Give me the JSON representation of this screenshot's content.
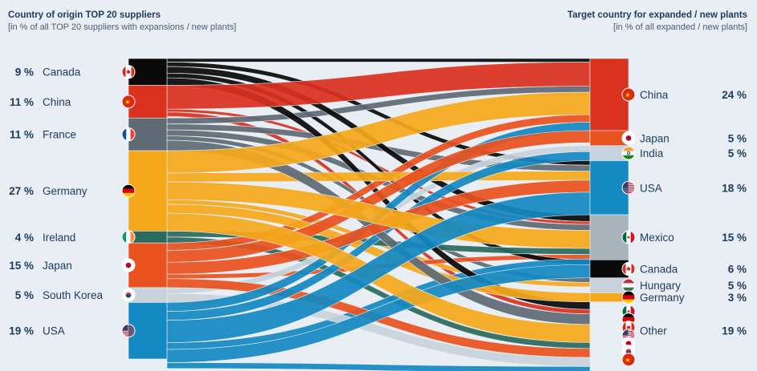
{
  "header_left": {
    "title": "Country of origin TOP 20 suppliers",
    "subtitle": "[in % of all TOP 20 suppliers with expansions / new plants]"
  },
  "header_right": {
    "title": "Target country for expanded / new plants",
    "subtitle": "[in % of all expanded / new plants]"
  },
  "sources": [
    {
      "name": "Canada",
      "pct": "9 %",
      "value": 9,
      "color": "#0a0a0a",
      "flag": "canada-flag-icon"
    },
    {
      "name": "China",
      "pct": "11 %",
      "value": 11,
      "color": "#d9321f",
      "flag": "china-flag-icon"
    },
    {
      "name": "France",
      "pct": "11 %",
      "value": 11,
      "color": "#5f6a75",
      "flag": "france-flag-icon"
    },
    {
      "name": "Germany",
      "pct": "27 %",
      "value": 27,
      "color": "#f5a81c",
      "flag": "germany-flag-icon"
    },
    {
      "name": "Ireland",
      "pct": "4 %",
      "value": 4,
      "color": "#2b6b5e",
      "flag": "ireland-flag-icon"
    },
    {
      "name": "Japan",
      "pct": "15 %",
      "value": 15,
      "color": "#e8521f",
      "flag": "japan-flag-icon"
    },
    {
      "name": "South Korea",
      "pct": "5 %",
      "value": 5,
      "color": "#c7d3dc",
      "flag": "south-korea-flag-icon"
    },
    {
      "name": "USA",
      "pct": "19 %",
      "value": 19,
      "color": "#1489c2",
      "flag": "usa-flag-icon"
    }
  ],
  "targets": [
    {
      "name": "China",
      "pct": "24 %",
      "value": 24,
      "color": "#d9321f",
      "flag": "china-flag-icon"
    },
    {
      "name": "Japan",
      "pct": "5 %",
      "value": 5,
      "color": "#e8521f",
      "flag": "japan-flag-icon"
    },
    {
      "name": "India",
      "pct": "5 %",
      "value": 5,
      "color": "#c7d3dc",
      "flag": "india-flag-icon"
    },
    {
      "name": "USA",
      "pct": "18 %",
      "value": 18,
      "color": "#1489c2",
      "flag": "usa-flag-icon"
    },
    {
      "name": "Mexico",
      "pct": "15 %",
      "value": 15,
      "color": "#a9b3bb",
      "flag": "mexico-flag-icon"
    },
    {
      "name": "Canada",
      "pct": "6 %",
      "value": 6,
      "color": "#0a0a0a",
      "flag": "canada-flag-icon"
    },
    {
      "name": "Hungary",
      "pct": "5 %",
      "value": 5,
      "color": "#c7d3dc",
      "flag": "hungary-flag-icon"
    },
    {
      "name": "Germany",
      "pct": "3 %",
      "value": 3,
      "color": "#f5a81c",
      "flag": "germany-flag-icon"
    },
    {
      "name": "Other",
      "pct": "19 %",
      "value": 19,
      "color": "#e8eef3",
      "flag": "other-flags-icon"
    }
  ],
  "flows": [
    {
      "from": "Canada",
      "to": "Canada",
      "value": 1.6
    },
    {
      "from": "Canada",
      "to": "Mexico",
      "value": 2.2
    },
    {
      "from": "Canada",
      "to": "USA",
      "value": 1.5
    },
    {
      "from": "Canada",
      "to": "China",
      "value": 1.2
    },
    {
      "from": "Canada",
      "to": "Other",
      "value": 2.5
    },
    {
      "from": "China",
      "to": "China",
      "value": 8
    },
    {
      "from": "China",
      "to": "Other",
      "value": 1.5
    },
    {
      "from": "China",
      "to": "Mexico",
      "value": 1
    },
    {
      "from": "France",
      "to": "China",
      "value": 2
    },
    {
      "from": "France",
      "to": "USA",
      "value": 2
    },
    {
      "from": "France",
      "to": "Mexico",
      "value": 2
    },
    {
      "from": "France",
      "to": "Hungary",
      "value": 1.5
    },
    {
      "from": "France",
      "to": "Other",
      "value": 3.5
    },
    {
      "from": "Germany",
      "to": "China",
      "value": 7.5
    },
    {
      "from": "Germany",
      "to": "Mexico",
      "value": 6
    },
    {
      "from": "Germany",
      "to": "USA",
      "value": 3
    },
    {
      "from": "Germany",
      "to": "Germany",
      "value": 3
    },
    {
      "from": "Germany",
      "to": "Hungary",
      "value": 1.5
    },
    {
      "from": "Germany",
      "to": "Other",
      "value": 6
    },
    {
      "from": "Ireland",
      "to": "Mexico",
      "value": 2
    },
    {
      "from": "Ireland",
      "to": "Other",
      "value": 2
    },
    {
      "from": "Japan",
      "to": "Japan",
      "value": 4
    },
    {
      "from": "Japan",
      "to": "USA",
      "value": 4
    },
    {
      "from": "Japan",
      "to": "China",
      "value": 2.5
    },
    {
      "from": "Japan",
      "to": "Mexico",
      "value": 1.5
    },
    {
      "from": "Japan",
      "to": "Other",
      "value": 3
    },
    {
      "from": "South Korea",
      "to": "India",
      "value": 2
    },
    {
      "from": "South Korea",
      "to": "Other",
      "value": 3
    },
    {
      "from": "USA",
      "to": "USA",
      "value": 7.5
    },
    {
      "from": "USA",
      "to": "China",
      "value": 3
    },
    {
      "from": "USA",
      "to": "India",
      "value": 3
    },
    {
      "from": "USA",
      "to": "Mexico",
      "value": 2.3
    },
    {
      "from": "USA",
      "to": "Canada",
      "value": 4.4
    },
    {
      "from": "USA",
      "to": "Other",
      "value": 2
    }
  ]
}
